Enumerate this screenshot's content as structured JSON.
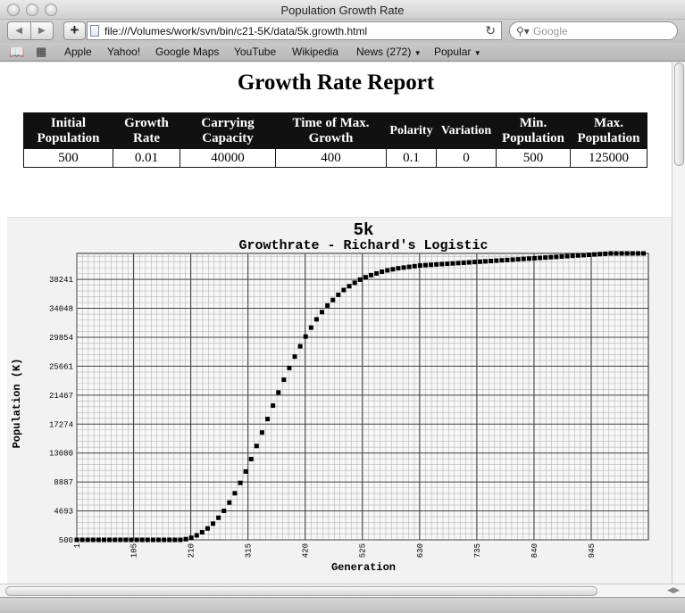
{
  "window": {
    "title": "Population Growth Rate"
  },
  "toolbar": {
    "back_icon": "back-arrow-icon",
    "forward_icon": "forward-arrow-icon",
    "add_label": "+",
    "url": "file:///Volumes/work/svn/bin/c21-5K/data/5k.growth.html",
    "search_placeholder": "Google"
  },
  "bookmarks": [
    "Apple",
    "Yahoo!",
    "Google Maps",
    "YouTube",
    "Wikipedia",
    "News (272)",
    "Popular"
  ],
  "report": {
    "title": "Growth Rate Report",
    "headers": [
      "Initial Population",
      "Growth Rate",
      "Carrying Capacity",
      "Time of Max. Growth",
      "Polarity",
      "Variation",
      "Min. Population",
      "Max. Population"
    ],
    "row": [
      "500",
      "0.01",
      "40000",
      "400",
      "0.1",
      "0",
      "500",
      "125000"
    ]
  },
  "chart_data": {
    "type": "scatter",
    "title": "5k",
    "subtitle": "Growthrate - Richard's Logistic",
    "xlabel": "Generation",
    "ylabel": "Population (K)",
    "xlim": [
      1,
      1050
    ],
    "ylim": [
      500,
      42000
    ],
    "x_ticks": [
      1,
      105,
      210,
      315,
      420,
      525,
      630,
      735,
      840,
      945
    ],
    "y_ticks": [
      500,
      4693,
      8887,
      13080,
      17274,
      21467,
      25661,
      29854,
      34048,
      38241
    ],
    "series": [
      {
        "x": [
          1,
          11,
          21,
          31,
          41,
          51,
          61,
          71,
          81,
          91,
          101,
          111,
          121,
          131,
          141,
          151,
          161,
          171,
          181,
          191,
          201,
          211,
          221,
          231,
          241,
          251,
          261,
          271,
          281,
          291,
          301,
          311,
          321,
          331,
          341,
          351,
          361,
          371,
          381,
          391,
          401,
          411,
          421,
          431,
          441,
          451,
          461,
          471,
          481,
          491,
          501,
          511,
          521,
          531,
          541,
          551,
          561,
          571,
          581,
          591,
          601,
          611,
          621,
          631,
          641,
          651,
          661,
          671,
          681,
          691,
          701,
          711,
          721,
          731,
          741,
          751,
          761,
          771,
          781,
          791,
          801,
          811,
          821,
          831,
          841,
          851,
          861,
          871,
          881,
          891,
          901,
          911,
          921,
          931,
          941,
          951,
          961,
          971,
          981,
          991,
          1001,
          1011,
          1021,
          1031,
          1041
        ],
        "y": [
          500,
          500,
          500,
          500,
          500,
          500,
          500,
          500,
          500,
          500,
          500,
          500,
          500,
          500,
          500,
          500,
          500,
          500,
          500,
          500,
          600,
          800,
          1150,
          1600,
          2150,
          2850,
          3700,
          4700,
          5900,
          7250,
          8750,
          10400,
          12200,
          14100,
          16050,
          18000,
          19950,
          21850,
          23700,
          25400,
          27050,
          28550,
          29950,
          31250,
          32450,
          33500,
          34450,
          35250,
          36000,
          36700,
          37250,
          37750,
          38200,
          38550,
          38850,
          39100,
          39350,
          39550,
          39700,
          39850,
          39950,
          40050,
          40150,
          40250,
          40300,
          40350,
          40400,
          40450,
          40500,
          40550,
          40600,
          40650,
          40700,
          40750,
          40800,
          40850,
          40900,
          40950,
          41000,
          41050,
          41100,
          41150,
          41200,
          41250,
          41300,
          41350,
          41400,
          41450,
          41500,
          41550,
          41600,
          41650,
          41700,
          41750,
          41800,
          41850,
          41900,
          41950,
          42000,
          42000,
          42000,
          42000,
          42000,
          42000,
          42000
        ]
      }
    ],
    "grid": true
  }
}
